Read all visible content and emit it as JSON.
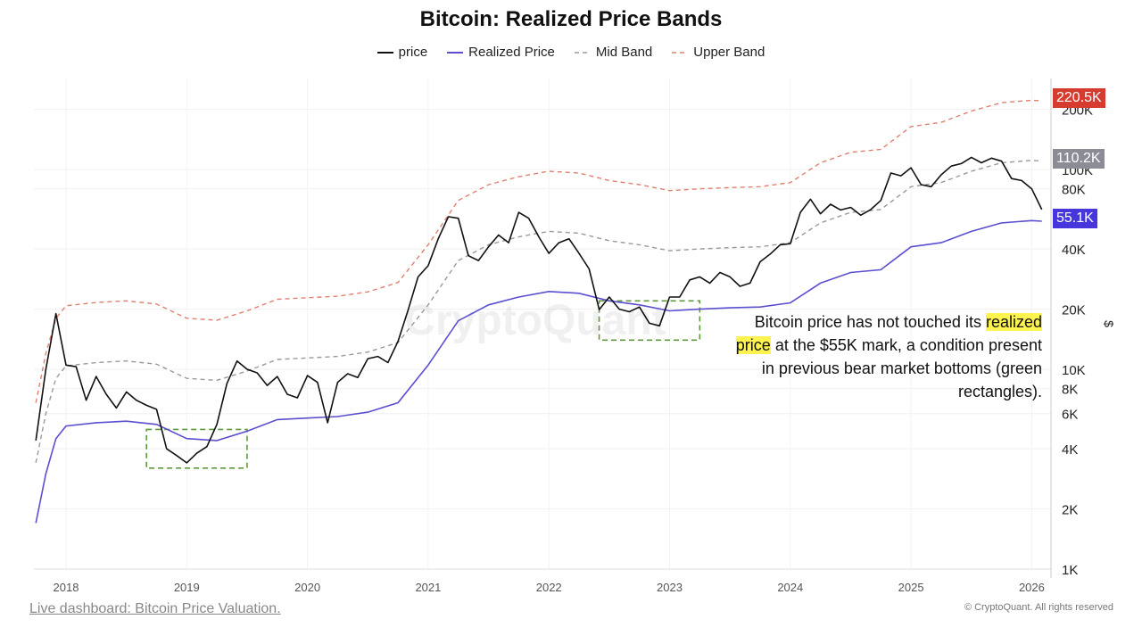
{
  "chart_data": {
    "type": "line",
    "title": "Bitcoin: Realized Price Bands",
    "y_scale": "log",
    "ylabel": "$",
    "ylim": [
      1000,
      285000
    ],
    "xlim": [
      "2017-10",
      "2026-02"
    ],
    "y_ticks": [
      "1K",
      "2K",
      "4K",
      "6K",
      "8K",
      "10K",
      "20K",
      "40K",
      "80K",
      "100K",
      "200K"
    ],
    "y_tick_values": [
      1000,
      2000,
      4000,
      6000,
      8000,
      10000,
      20000,
      40000,
      80000,
      100000,
      200000
    ],
    "x_ticks": [
      "2018",
      "2019",
      "2020",
      "2021",
      "2022",
      "2023",
      "2024",
      "2025",
      "2026"
    ],
    "grid": true,
    "legend_position": "top-center",
    "series": [
      {
        "name": "price",
        "color": "#111111",
        "style": "solid",
        "x": [
          "2017-10",
          "2017-11",
          "2017-12",
          "2018-01",
          "2018-02",
          "2018-03",
          "2018-04",
          "2018-05",
          "2018-06",
          "2018-07",
          "2018-08",
          "2018-09",
          "2018-10",
          "2018-11",
          "2018-12",
          "2019-01",
          "2019-02",
          "2019-03",
          "2019-04",
          "2019-05",
          "2019-06",
          "2019-07",
          "2019-08",
          "2019-09",
          "2019-10",
          "2019-11",
          "2019-12",
          "2020-01",
          "2020-02",
          "2020-03",
          "2020-04",
          "2020-05",
          "2020-06",
          "2020-07",
          "2020-08",
          "2020-09",
          "2020-10",
          "2020-11",
          "2020-12",
          "2021-01",
          "2021-02",
          "2021-03",
          "2021-04",
          "2021-05",
          "2021-06",
          "2021-07",
          "2021-08",
          "2021-09",
          "2021-10",
          "2021-11",
          "2021-12",
          "2022-01",
          "2022-02",
          "2022-03",
          "2022-04",
          "2022-05",
          "2022-06",
          "2022-07",
          "2022-08",
          "2022-09",
          "2022-10",
          "2022-11",
          "2022-12",
          "2023-01",
          "2023-02",
          "2023-03",
          "2023-04",
          "2023-05",
          "2023-06",
          "2023-07",
          "2023-08",
          "2023-09",
          "2023-10",
          "2023-11",
          "2023-12",
          "2024-01",
          "2024-02",
          "2024-03",
          "2024-04",
          "2024-05",
          "2024-06",
          "2024-07",
          "2024-08",
          "2024-09",
          "2024-10",
          "2024-11",
          "2024-12",
          "2025-01",
          "2025-02",
          "2025-03",
          "2025-04",
          "2025-05",
          "2025-06",
          "2025-07",
          "2025-08",
          "2025-09",
          "2025-10",
          "2025-11",
          "2025-12",
          "2026-01",
          "2026-02"
        ],
        "values": [
          4400,
          10000,
          19000,
          10500,
          10300,
          7000,
          9200,
          7500,
          6400,
          7700,
          7000,
          6600,
          6300,
          4000,
          3700,
          3400,
          3800,
          4100,
          5300,
          8500,
          11000,
          10000,
          9600,
          8300,
          9200,
          7500,
          7200,
          9300,
          8600,
          5400,
          8600,
          9500,
          9100,
          11300,
          11600,
          10800,
          13800,
          19700,
          29000,
          33000,
          45000,
          58000,
          57000,
          37000,
          35000,
          41000,
          47000,
          43000,
          61000,
          57000,
          46000,
          38000,
          43000,
          45000,
          38000,
          31800,
          19900,
          23000,
          20000,
          19400,
          20500,
          17000,
          16500,
          23000,
          23000,
          28000,
          29000,
          27000,
          30500,
          29000,
          26000,
          27000,
          34500,
          37700,
          42000,
          42500,
          61000,
          71000,
          60000,
          67000,
          62700,
          64600,
          59000,
          63000,
          70000,
          96000,
          93000,
          102000,
          84000,
          82000,
          94000,
          104000,
          107000,
          115000,
          108000,
          114000,
          110000,
          90000,
          88000,
          80000,
          63000
        ]
      },
      {
        "name": "Realized Price",
        "color": "#5b4fd1",
        "style": "solid",
        "x": [
          "2017-10",
          "2017-11",
          "2017-12",
          "2018-01",
          "2018-04",
          "2018-07",
          "2018-10",
          "2019-01",
          "2019-04",
          "2019-07",
          "2019-10",
          "2020-01",
          "2020-04",
          "2020-07",
          "2020-10",
          "2021-01",
          "2021-04",
          "2021-07",
          "2021-10",
          "2022-01",
          "2022-04",
          "2022-07",
          "2022-10",
          "2023-01",
          "2023-04",
          "2023-07",
          "2023-10",
          "2024-01",
          "2024-04",
          "2024-07",
          "2024-10",
          "2025-01",
          "2025-04",
          "2025-07",
          "2025-10",
          "2026-01",
          "2026-02"
        ],
        "values": [
          1700,
          3000,
          4500,
          5200,
          5400,
          5500,
          5300,
          4500,
          4400,
          4900,
          5600,
          5700,
          5800,
          6100,
          6800,
          10500,
          17500,
          21000,
          23000,
          24500,
          24000,
          22000,
          21000,
          19600,
          20000,
          20300,
          20500,
          21500,
          27000,
          30500,
          31500,
          41000,
          43000,
          49000,
          54000,
          55500,
          55100
        ]
      },
      {
        "name": "Mid Band",
        "color": "#9a9a9a",
        "style": "dashed",
        "multiple_of_realized": 2,
        "last_value": 110200
      },
      {
        "name": "Upper Band",
        "color": "#e0806f",
        "style": "dashed",
        "multiple_of_realized": 4,
        "last_value": 220500
      }
    ],
    "value_markers": [
      {
        "label": "220.5K",
        "color": "#d63b30"
      },
      {
        "label": "110.2K",
        "color": "#8c8c96"
      },
      {
        "label": "55.1K",
        "color": "#4636db"
      }
    ],
    "highlight_boxes": [
      {
        "x": [
          "2018-09",
          "2019-07"
        ],
        "y": [
          3200,
          5000
        ],
        "color": "#5e9a3c"
      },
      {
        "x": [
          "2022-06",
          "2023-04"
        ],
        "y": [
          14000,
          22000
        ],
        "color": "#5e9a3c"
      }
    ],
    "annotation": {
      "before": "Bitcoin price has not touched its ",
      "highlight": "realized price",
      "after": " at the $55K mark, a condition present in previous bear market bottoms (green rectangles)."
    },
    "watermark": "CryptoQuant"
  },
  "footer": {
    "link": "Live dashboard: Bitcoin Price Valuation.",
    "copyright": "© CryptoQuant. All rights reserved"
  }
}
